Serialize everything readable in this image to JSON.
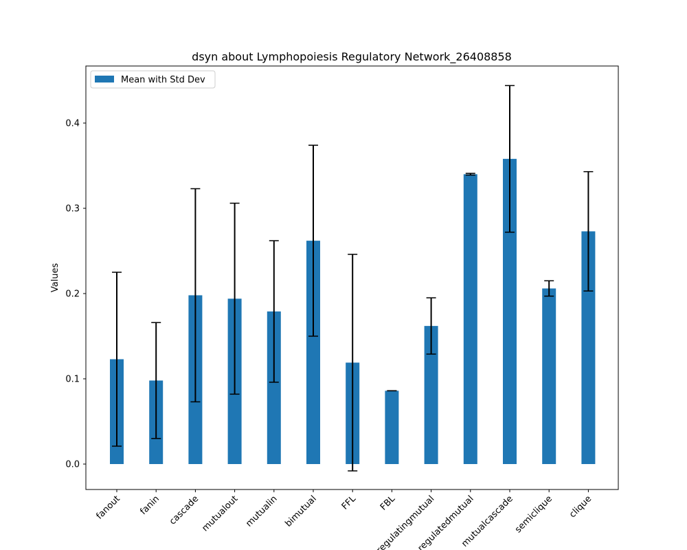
{
  "chart_data": {
    "type": "bar",
    "title": "dsyn about Lymphopoiesis Regulatory Network_26408858",
    "xlabel": "",
    "ylabel": "Values",
    "categories": [
      "fanout",
      "fanin",
      "cascade",
      "mutualout",
      "mutualin",
      "bimutual",
      "FFL",
      "FBL",
      "regulatingmutual",
      "regulatedmutual",
      "mutualcascade",
      "semiclique",
      "clique"
    ],
    "series": [
      {
        "name": "Mean with Std Dev",
        "values": [
          0.123,
          0.098,
          0.198,
          0.194,
          0.179,
          0.262,
          0.119,
          0.086,
          0.162,
          0.34,
          0.358,
          0.206,
          0.273
        ],
        "errors": [
          0.102,
          0.068,
          0.125,
          0.112,
          0.083,
          0.112,
          0.127,
          0.0,
          0.033,
          0.001,
          0.086,
          0.009,
          0.07
        ],
        "color": "#1f77b4"
      }
    ],
    "ylim": [
      -0.03,
      0.455
    ],
    "yticks": [
      0.0,
      0.1,
      0.2,
      0.3,
      0.4
    ],
    "ytick_labels": [
      "0.0",
      "0.1",
      "0.2",
      "0.3",
      "0.4"
    ],
    "grid": false,
    "legend_position": "upper left",
    "xtick_rotation": 45
  }
}
